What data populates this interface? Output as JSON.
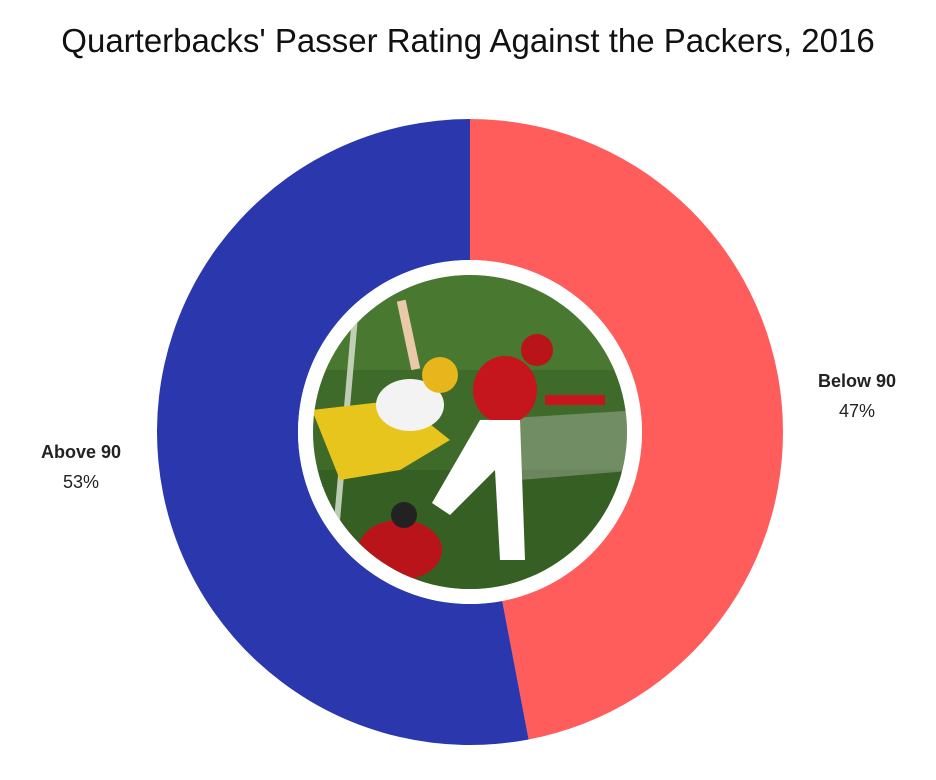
{
  "chart_data": {
    "type": "pie",
    "title": "Quarterbacks' Passer Rating Against the Packers, 2016",
    "donut": true,
    "center_image": "football-action-photo",
    "slices": [
      {
        "label": "Below 90",
        "value": 47,
        "display": "47%",
        "color": "#ff5c5c"
      },
      {
        "label": "Above 90",
        "value": 53,
        "display": "53%",
        "color": "#2b37ad"
      }
    ]
  }
}
